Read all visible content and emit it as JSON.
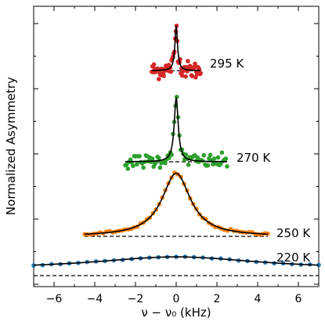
{
  "chart_data": {
    "type": "scatter",
    "xlabel": "ν − ν₀ (kHz)",
    "ylabel": "Normalized Asymmetry",
    "xlim": [
      -7,
      7
    ],
    "xticks": [
      -6,
      -4,
      -2,
      0,
      2,
      4,
      6
    ],
    "xtick_labels": [
      "−6",
      "−4",
      "−2",
      "0",
      "2",
      "4",
      "6"
    ],
    "yticks_labeled": false,
    "grid": false,
    "series": [
      {
        "name": "295 K",
        "color": "#d62728",
        "type": "lorentzian",
        "span": [
          -1.2,
          1.2
        ],
        "width_khz": 0.08,
        "peak_height": 0.72,
        "noise": 0.07,
        "n_points": 70
      },
      {
        "name": "270 K",
        "color": "#2ca02c",
        "type": "lorentzian",
        "span": [
          -2.5,
          2.5
        ],
        "width_khz": 0.12,
        "peak_height": 0.88,
        "noise": 0.05,
        "n_points": 80
      },
      {
        "name": "250 K",
        "color": "#ff7f0e",
        "type": "lorentzian",
        "span": [
          -4.5,
          4.5
        ],
        "width_khz": 0.85,
        "peak_height": 0.98,
        "noise": 0.02,
        "n_points": 60
      },
      {
        "name": "220 K",
        "color": "#1f77b4",
        "type": "lorentzian",
        "span": [
          -7,
          7
        ],
        "width_khz": 5.0,
        "peak_height": 0.9,
        "noise": 0.01,
        "n_points": 33
      }
    ]
  }
}
